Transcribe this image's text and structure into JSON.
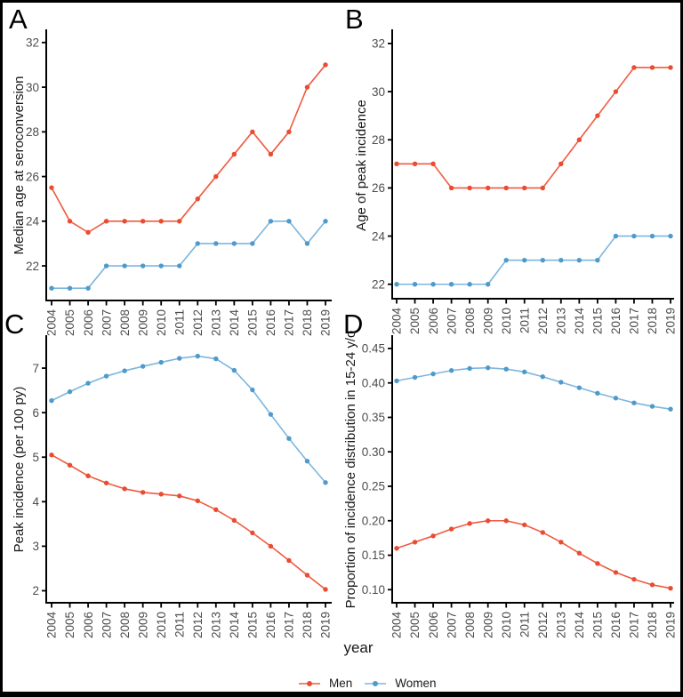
{
  "figure": {
    "xlabel": "year",
    "legend": {
      "men_label": "Men",
      "women_label": "Women"
    }
  },
  "colors": {
    "men_line": "#F05A40",
    "men_point": "#E94C30",
    "women_line": "#7EB6DD",
    "women_point": "#4E9ACB",
    "axis": "#000000",
    "tick_text": "#4D4D4D",
    "title_text": "#1A1A1A"
  },
  "years": [
    "2004",
    "2005",
    "2006",
    "2007",
    "2008",
    "2009",
    "2010",
    "2011",
    "2012",
    "2013",
    "2014",
    "2015",
    "2016",
    "2017",
    "2018",
    "2019"
  ],
  "chart_data": [
    {
      "type": "line",
      "panel_label": "A",
      "ylabel": "Median age at seroconversion",
      "xlabel": "year",
      "x": [
        2004,
        2005,
        2006,
        2007,
        2008,
        2009,
        2010,
        2011,
        2012,
        2013,
        2014,
        2015,
        2016,
        2017,
        2018,
        2019
      ],
      "ylim": [
        20.45,
        32.55
      ],
      "ytick_values": [
        22,
        24,
        26,
        28,
        30,
        32
      ],
      "ytick_labels": [
        "22",
        "24",
        "26",
        "28",
        "30",
        "32"
      ],
      "grid": false,
      "legend_position": "bottom",
      "series": [
        {
          "name": "Men",
          "values": [
            25.5,
            24,
            23.5,
            24,
            24,
            24,
            24,
            24,
            25,
            26,
            27,
            28,
            27,
            28,
            30,
            31
          ]
        },
        {
          "name": "Women",
          "values": [
            21,
            21,
            21,
            22,
            22,
            22,
            22,
            22,
            23,
            23,
            23,
            23,
            24,
            24,
            23,
            24
          ]
        }
      ]
    },
    {
      "type": "line",
      "panel_label": "B",
      "ylabel": "Age of peak incidence",
      "xlabel": "year",
      "x": [
        2004,
        2005,
        2006,
        2007,
        2008,
        2009,
        2010,
        2011,
        2012,
        2013,
        2014,
        2015,
        2016,
        2017,
        2018,
        2019
      ],
      "ylim": [
        21.4,
        32.55
      ],
      "ytick_values": [
        22,
        24,
        26,
        28,
        30,
        32
      ],
      "ytick_labels": [
        "22",
        "24",
        "26",
        "28",
        "30",
        "32"
      ],
      "grid": false,
      "legend_position": "bottom",
      "series": [
        {
          "name": "Men",
          "values": [
            27,
            27,
            27,
            26,
            26,
            26,
            26,
            26,
            26,
            27,
            28,
            29,
            30,
            31,
            31,
            31
          ]
        },
        {
          "name": "Women",
          "values": [
            22,
            22,
            22,
            22,
            22,
            22,
            23,
            23,
            23,
            23,
            23,
            23,
            24,
            24,
            24,
            24
          ]
        }
      ]
    },
    {
      "type": "line",
      "panel_label": "C",
      "ylabel": "Peak incidence (per 100 py)",
      "xlabel": "year",
      "x": [
        2004,
        2005,
        2006,
        2007,
        2008,
        2009,
        2010,
        2011,
        2012,
        2013,
        2014,
        2015,
        2016,
        2017,
        2018,
        2019
      ],
      "ylim": [
        1.73,
        7.72
      ],
      "ytick_values": [
        2,
        3,
        4,
        5,
        6,
        7
      ],
      "ytick_labels": [
        "2",
        "3",
        "4",
        "5",
        "6",
        "7"
      ],
      "grid": false,
      "legend_position": "bottom",
      "series": [
        {
          "name": "Men",
          "values": [
            5.05,
            4.82,
            4.58,
            4.42,
            4.29,
            4.21,
            4.17,
            4.13,
            4.02,
            3.82,
            3.58,
            3.3,
            3.0,
            2.68,
            2.35,
            2.03
          ]
        },
        {
          "name": "Women",
          "values": [
            6.27,
            6.47,
            6.66,
            6.82,
            6.94,
            7.04,
            7.13,
            7.22,
            7.27,
            7.21,
            6.95,
            6.51,
            5.96,
            5.42,
            4.91,
            4.43
          ]
        }
      ]
    },
    {
      "type": "line",
      "panel_label": "D",
      "ylabel": "Proportion of incidence distribution in 15-24 y/o",
      "xlabel": "year",
      "x": [
        2004,
        2005,
        2006,
        2007,
        2008,
        2009,
        2010,
        2011,
        2012,
        2013,
        2014,
        2015,
        2016,
        2017,
        2018,
        2019
      ],
      "ylim": [
        0.081,
        0.468
      ],
      "ytick_values": [
        0.1,
        0.15,
        0.2,
        0.25,
        0.3,
        0.35,
        0.4,
        0.45
      ],
      "ytick_labels": [
        "0.10",
        "0.15",
        "0.20",
        "0.25",
        "0.30",
        "0.35",
        "0.40",
        "0.45"
      ],
      "grid": false,
      "legend_position": "bottom",
      "series": [
        {
          "name": "Men",
          "values": [
            0.16,
            0.169,
            0.178,
            0.188,
            0.196,
            0.2,
            0.2,
            0.194,
            0.183,
            0.169,
            0.153,
            0.138,
            0.125,
            0.115,
            0.107,
            0.102
          ]
        },
        {
          "name": "Women",
          "values": [
            0.403,
            0.408,
            0.413,
            0.418,
            0.421,
            0.422,
            0.42,
            0.416,
            0.409,
            0.401,
            0.393,
            0.385,
            0.378,
            0.371,
            0.366,
            0.362
          ]
        }
      ]
    }
  ]
}
